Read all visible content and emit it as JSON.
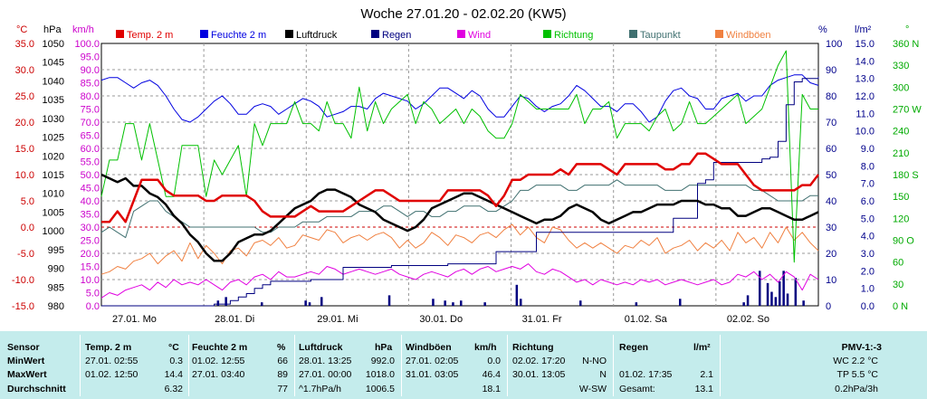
{
  "chart_data": {
    "type": "line",
    "title": "Woche 27.01.20 - 02.02.20 (KW5)",
    "x_labels": [
      "27.01. Mo",
      "28.01. Di",
      "29.01. Mi",
      "30.01. Do",
      "31.01. Fr",
      "01.02. Sa",
      "02.02. So"
    ],
    "axes": {
      "celsius": {
        "unit": "°C",
        "ticks": [
          "35.0",
          "30.0",
          "25.0",
          "20.0",
          "15.0",
          "10.0",
          "5.0",
          "0.0",
          "-5.0",
          "-10.0",
          "-15.0"
        ],
        "color": "#cc0000"
      },
      "hpa": {
        "unit": "hPa",
        "ticks": [
          "1050",
          "1045",
          "1040",
          "1035",
          "1030",
          "1025",
          "1020",
          "1015",
          "1010",
          "1005",
          "1000",
          "995",
          "990",
          "985",
          "980"
        ],
        "color": "#000000"
      },
      "kmh": {
        "unit": "km/h",
        "ticks": [
          "100.0",
          "95.0",
          "90.0",
          "85.0",
          "80.0",
          "75.0",
          "70.0",
          "65.0",
          "60.0",
          "55.0",
          "50.0",
          "45.0",
          "40.0",
          "35.0",
          "30.0",
          "25.0",
          "20.0",
          "15.0",
          "10.0",
          "5.0",
          "0.0"
        ],
        "color": "#cc00cc"
      },
      "percent": {
        "unit": "%",
        "ticks": [
          "100",
          "90",
          "80",
          "70",
          "60",
          "50",
          "40",
          "30",
          "20",
          "10",
          "0"
        ],
        "color": "#00008b"
      },
      "rain": {
        "unit": "l/m²",
        "ticks": [
          "15.0",
          "14.0",
          "13.0",
          "12.0",
          "11.0",
          "10.0",
          "9.0",
          "8.0",
          "7.0",
          "6.0",
          "5.0",
          "4.0",
          "3.0",
          "2.0",
          "1.0",
          "0.0"
        ],
        "color": "#00008b"
      },
      "direction": {
        "unit": "°",
        "ticks": [
          "360 N",
          "330",
          "300",
          "270 W",
          "240",
          "210",
          "180 S",
          "150",
          "120",
          "90 O",
          "60",
          "30",
          "0 N"
        ],
        "color": "#00aa00"
      }
    },
    "legend": [
      {
        "name": "Temp. 2 m",
        "color": "#e00000"
      },
      {
        "name": "Feuchte 2 m",
        "color": "#0000e0"
      },
      {
        "name": "Luftdruck",
        "color": "#000000"
      },
      {
        "name": "Regen",
        "color": "#000080"
      },
      {
        "name": "Wind",
        "color": "#e000e0"
      },
      {
        "name": "Richtung",
        "color": "#00c000"
      },
      {
        "name": "Taupunkt",
        "color": "#407070"
      },
      {
        "name": "Windböen",
        "color": "#f08040"
      }
    ],
    "series": [
      {
        "name": "Temp. 2 m",
        "color": "#e00000",
        "width": 2.5,
        "values": [
          1,
          1,
          3,
          1,
          5,
          9,
          9,
          9,
          7,
          6,
          6,
          6,
          6,
          5,
          5,
          6,
          6,
          6,
          6,
          5,
          3,
          2,
          2,
          2,
          2,
          3,
          4,
          3,
          3,
          3,
          3,
          4,
          5,
          6,
          7,
          7,
          6,
          5,
          5,
          5,
          5,
          5,
          5,
          7,
          7,
          7,
          7,
          7,
          6,
          4,
          6,
          9,
          9,
          10,
          10,
          10,
          10,
          11,
          10,
          12,
          12,
          12,
          12,
          11,
          10,
          12,
          12,
          12,
          12,
          12,
          11,
          11,
          12,
          12,
          14,
          14,
          13,
          12,
          12,
          12,
          10,
          8,
          7,
          7,
          7,
          7,
          7,
          8,
          8,
          10
        ]
      },
      {
        "name": "Feuchte 2 m",
        "color": "#0000e0",
        "width": 1,
        "values": [
          86,
          87,
          87,
          85,
          83,
          85,
          86,
          84,
          80,
          75,
          71,
          70,
          72,
          75,
          78,
          80,
          77,
          73,
          73,
          76,
          77,
          76,
          73,
          75,
          77,
          79,
          78,
          76,
          72,
          73,
          74,
          76,
          76,
          75,
          79,
          81,
          80,
          79,
          78,
          75,
          77,
          80,
          83,
          83,
          81,
          79,
          82,
          80,
          75,
          72,
          72,
          76,
          80,
          79,
          76,
          74,
          76,
          77,
          80,
          84,
          82,
          79,
          76,
          76,
          74,
          77,
          77,
          74,
          70,
          72,
          78,
          82,
          83,
          80,
          79,
          75,
          75,
          79,
          80,
          81,
          78,
          80,
          80,
          84,
          86,
          87,
          88,
          88,
          85,
          84
        ]
      },
      {
        "name": "Luftdruck",
        "color": "#000000",
        "width": 2.5,
        "values": [
          1015,
          1014,
          1013,
          1014,
          1012,
          1012,
          1010,
          1009,
          1007,
          1004,
          1002,
          999,
          997,
          994,
          992,
          992,
          994,
          997,
          998,
          999,
          999,
          1000,
          1002,
          1004,
          1006,
          1007,
          1008,
          1010,
          1011,
          1011,
          1010,
          1009,
          1007,
          1006,
          1005,
          1003,
          1002,
          1001,
          1000,
          1001,
          1003,
          1006,
          1007,
          1008,
          1009,
          1010,
          1010,
          1009,
          1008,
          1007,
          1006,
          1005,
          1004,
          1003,
          1002,
          1003,
          1003,
          1004,
          1006,
          1007,
          1006,
          1005,
          1003,
          1002,
          1003,
          1004,
          1005,
          1005,
          1006,
          1007,
          1007,
          1007,
          1008,
          1008,
          1008,
          1007,
          1007,
          1006,
          1006,
          1004,
          1004,
          1005,
          1006,
          1006,
          1005,
          1004,
          1003,
          1003,
          1004,
          1005
        ]
      },
      {
        "name": "Taupunkt",
        "color": "#407070",
        "width": 1,
        "values": [
          -1,
          0,
          -1,
          -2,
          3,
          4,
          5,
          5,
          3,
          2,
          1,
          0,
          0,
          0,
          0,
          0,
          0,
          0,
          0,
          0,
          -1,
          -1,
          0,
          0,
          0,
          1,
          1,
          1,
          2,
          2,
          2,
          2,
          3,
          3,
          3,
          4,
          4,
          3,
          2,
          3,
          3,
          2,
          2,
          3,
          3,
          4,
          4,
          4,
          3,
          3,
          4,
          5,
          7,
          7,
          8,
          8,
          8,
          8,
          7,
          7,
          8,
          8,
          8,
          8,
          9,
          8,
          8,
          8,
          8,
          8,
          7,
          7,
          7,
          8,
          8,
          8,
          8,
          8,
          8,
          8,
          8,
          7,
          7,
          6,
          5,
          5,
          5,
          5,
          6,
          6
        ]
      },
      {
        "name": "Windböen",
        "color": "#f08040",
        "width": 1,
        "values": [
          12,
          13,
          15,
          14,
          17,
          18,
          20,
          16,
          19,
          21,
          17,
          24,
          18,
          23,
          20,
          16,
          21,
          22,
          19,
          24,
          25,
          23,
          26,
          22,
          23,
          27,
          26,
          25,
          29,
          28,
          24,
          26,
          27,
          25,
          27,
          28,
          26,
          22,
          25,
          22,
          24,
          28,
          26,
          23,
          27,
          26,
          24,
          27,
          28,
          26,
          29,
          31,
          27,
          30,
          26,
          24,
          30,
          29,
          25,
          22,
          24,
          22,
          24,
          22,
          20,
          23,
          22,
          25,
          23,
          26,
          20,
          22,
          23,
          25,
          21,
          24,
          22,
          25,
          21,
          28,
          24,
          26,
          22,
          28,
          24,
          30,
          25,
          28,
          24,
          21
        ]
      },
      {
        "name": "Wind",
        "color": "#e000e0",
        "width": 1,
        "values": [
          3,
          5,
          4,
          6,
          7,
          8,
          6,
          9,
          7,
          10,
          8,
          9,
          8,
          10,
          8,
          6,
          9,
          10,
          8,
          11,
          12,
          10,
          13,
          11,
          11,
          12,
          13,
          12,
          15,
          14,
          12,
          13,
          14,
          13,
          12,
          13,
          14,
          12,
          11,
          10,
          12,
          13,
          12,
          11,
          13,
          14,
          12,
          14,
          15,
          13,
          14,
          15,
          14,
          16,
          13,
          12,
          14,
          13,
          11,
          9,
          10,
          8,
          10,
          9,
          8,
          9,
          8,
          10,
          9,
          10,
          8,
          9,
          10,
          9,
          8,
          9,
          10,
          8,
          9,
          12,
          11,
          13,
          10,
          12,
          9,
          13,
          11,
          6,
          12,
          10
        ]
      },
      {
        "name": "Richtung",
        "color": "#00c000",
        "width": 1,
        "values": [
          150,
          200,
          200,
          250,
          250,
          200,
          250,
          200,
          150,
          150,
          220,
          220,
          220,
          150,
          200,
          180,
          200,
          220,
          150,
          250,
          220,
          250,
          250,
          250,
          280,
          250,
          250,
          240,
          280,
          250,
          250,
          230,
          300,
          240,
          280,
          250,
          270,
          280,
          290,
          250,
          280,
          270,
          250,
          260,
          270,
          250,
          270,
          260,
          240,
          230,
          230,
          250,
          290,
          280,
          270,
          270,
          270,
          270,
          270,
          290,
          250,
          270,
          270,
          280,
          230,
          250,
          250,
          250,
          240,
          260,
          270,
          240,
          250,
          280,
          250,
          250,
          260,
          270,
          280,
          290,
          250,
          260,
          270,
          300,
          330,
          350,
          60,
          290,
          270,
          270
        ]
      },
      {
        "name": "Regen",
        "color": "#000080",
        "type": "cumulative",
        "values": [
          0,
          0,
          0,
          0,
          0,
          0,
          0,
          0,
          0,
          0,
          0,
          0,
          0,
          0,
          0.1,
          0.1,
          0.3,
          0.5,
          0.7,
          1.0,
          1.2,
          1.4,
          1.4,
          1.4,
          1.4,
          1.4,
          1.5,
          1.5,
          1.5,
          1.5,
          2.2,
          2.2,
          2.2,
          2.2,
          2.2,
          2.2,
          2.3,
          2.3,
          2.3,
          2.3,
          2.3,
          2.3,
          2.3,
          2.4,
          2.4,
          2.4,
          2.4,
          2.4,
          2.4,
          3.1,
          3.1,
          3.1,
          3.1,
          3.1,
          4.2,
          4.2,
          4.2,
          4.2,
          4.2,
          4.2,
          4.2,
          4.2,
          4.2,
          4.2,
          4.2,
          4.2,
          4.2,
          4.2,
          4.2,
          4.2,
          4.2,
          5.0,
          5.0,
          5.0,
          7.0,
          7.2,
          8.2,
          8.2,
          8.2,
          8.2,
          8.2,
          8.2,
          8.4,
          8.5,
          9.4,
          11.5,
          12.8,
          13.0,
          13.0,
          13.1
        ]
      },
      {
        "name": "Regen Balken",
        "color": "#000080",
        "type": "bars",
        "values": [
          [
            29,
            0.3
          ],
          [
            31,
            0.5
          ],
          [
            40,
            0.2
          ],
          [
            51,
            0.3
          ],
          [
            52,
            0.2
          ],
          [
            55,
            0.5
          ],
          [
            72,
            0.6
          ],
          [
            83,
            0.4
          ],
          [
            86,
            0.3
          ],
          [
            88,
            0.2
          ],
          [
            90,
            0.3
          ],
          [
            96,
            0.2
          ],
          [
            104,
            1.2
          ],
          [
            105,
            0.4
          ],
          [
            120,
            0.3
          ],
          [
            134,
            0.2
          ],
          [
            145,
            0.4
          ],
          [
            161,
            0.2
          ],
          [
            162,
            0.6
          ],
          [
            165,
            2.0
          ],
          [
            167,
            1.3
          ],
          [
            168,
            0.8
          ],
          [
            169,
            0.5
          ],
          [
            170,
            1.4
          ],
          [
            171,
            2.0
          ],
          [
            172,
            0.7
          ],
          [
            174,
            1.6
          ],
          [
            176,
            0.3
          ]
        ]
      }
    ]
  },
  "stats": {
    "headers": {
      "sensor": "Sensor",
      "temp": "Temp. 2 m",
      "temp_unit": "°C",
      "hum": "Feuchte 2 m",
      "hum_unit": "%",
      "press": "Luftdruck",
      "press_unit": "hPa",
      "gust": "Windböen",
      "gust_unit": "km/h",
      "dir": "Richtung",
      "rain": "Regen",
      "rain_unit": "l/m²",
      "pmv": "PMV-1:-3"
    },
    "row_labels": {
      "min": "MinWert",
      "max": "MaxWert",
      "avg": "Durchschnitt"
    },
    "temp": {
      "min_time": "27.01.  02:55",
      "min": "0.3",
      "max_time": "01.02.  12:50",
      "max": "14.4",
      "avg": "6.32"
    },
    "hum": {
      "min_time": "01.02.  12:55",
      "min": "66",
      "max_time": "27.01.  03:40",
      "max": "89",
      "avg": "77"
    },
    "press": {
      "min_time": "28.01.  13:25",
      "min": "992.0",
      "max_time": "27.01.  00:00",
      "max": "1018.0",
      "trend": "^1.7hPa/h",
      "avg": "1006.5"
    },
    "gust": {
      "min_time": "27.01.  02:05",
      "min": "0.0",
      "max_time": "31.01.  03:05",
      "max": "46.4",
      "avg": "18.1"
    },
    "dir": {
      "min_time": "02.02.  17:20",
      "min": "N-NO",
      "max_time": "30.01.  13:05",
      "max": "N",
      "avg": "W-SW"
    },
    "rain": {
      "max_time": "01.02.  17:35",
      "max": "2.1",
      "total_label": "Gesamt:",
      "total": "13.1"
    },
    "pmv": {
      "wc": "WC 2.2 °C",
      "tp": "TP 5.5 °C",
      "trend": "0.2hPa/3h"
    }
  }
}
